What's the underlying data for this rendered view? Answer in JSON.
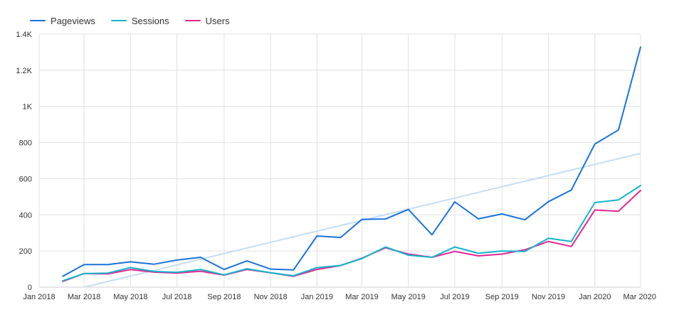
{
  "colors": {
    "pageviews": "#1a73d9",
    "sessions": "#12b5cb",
    "users": "#e52592",
    "trend": "#c6dcf5",
    "grid": "#e0e0e0",
    "axis": "#cfcfcf"
  },
  "legend": {
    "pageviews_label": "Pageviews",
    "sessions_label": "Sessions",
    "users_label": "Users"
  },
  "chart_data": {
    "type": "line",
    "title": "",
    "xlabel": "",
    "ylabel": "",
    "legend_position": "top-left",
    "grid": true,
    "ylim": [
      0,
      1400
    ],
    "y_ticks": [
      0,
      200,
      400,
      600,
      800,
      1000,
      1200,
      1400
    ],
    "y_tick_labels": [
      "0",
      "200",
      "400",
      "600",
      "800",
      "1K",
      "1.2K",
      "1.4K"
    ],
    "x_range": [
      "2018-01-01",
      "2020-03-01"
    ],
    "x_ticks": [
      "2018-01-01",
      "2018-03-01",
      "2018-05-01",
      "2018-07-01",
      "2018-09-01",
      "2018-11-01",
      "2019-01-01",
      "2019-03-01",
      "2019-05-01",
      "2019-07-01",
      "2019-09-01",
      "2019-11-01",
      "2020-01-01",
      "2020-03-01"
    ],
    "x_tick_labels": [
      "Jan 2018",
      "Mar 2018",
      "May 2018",
      "Jul 2018",
      "Sep 2018",
      "Nov 2018",
      "Jan 2019",
      "Mar 2019",
      "May 2019",
      "Jul 2019",
      "Sep 2019",
      "Nov 2019",
      "Jan 2020",
      "Mar 2020"
    ],
    "x": [
      "2018-02-01",
      "2018-03-01",
      "2018-04-01",
      "2018-05-01",
      "2018-06-01",
      "2018-07-01",
      "2018-08-01",
      "2018-09-01",
      "2018-10-01",
      "2018-11-01",
      "2018-12-01",
      "2019-01-01",
      "2019-02-01",
      "2019-03-01",
      "2019-04-01",
      "2019-05-01",
      "2019-06-01",
      "2019-07-01",
      "2019-08-01",
      "2019-09-01",
      "2019-10-01",
      "2019-11-01",
      "2019-12-01",
      "2020-01-01",
      "2020-02-01",
      "2020-03-01"
    ],
    "series": [
      {
        "name": "Pageviews",
        "color": "#1a73d9",
        "values": [
          60,
          125,
          125,
          140,
          127,
          150,
          165,
          98,
          145,
          100,
          95,
          283,
          275,
          375,
          377,
          430,
          290,
          472,
          378,
          405,
          373,
          473,
          537,
          792,
          870,
          1328
        ]
      },
      {
        "name": "Sessions",
        "color": "#12b5cb",
        "values": [
          35,
          75,
          78,
          108,
          87,
          82,
          98,
          68,
          102,
          80,
          63,
          108,
          120,
          158,
          222,
          177,
          165,
          222,
          187,
          200,
          198,
          270,
          253,
          468,
          483,
          562
        ]
      },
      {
        "name": "Users",
        "color": "#e52592",
        "values": [
          32,
          75,
          73,
          97,
          83,
          78,
          88,
          67,
          98,
          80,
          60,
          98,
          120,
          160,
          218,
          183,
          165,
          198,
          173,
          183,
          207,
          253,
          225,
          427,
          420,
          535
        ]
      }
    ],
    "trendline": {
      "x": [
        "2018-01-01",
        "2020-03-01"
      ],
      "values": [
        -60,
        740
      ]
    }
  }
}
